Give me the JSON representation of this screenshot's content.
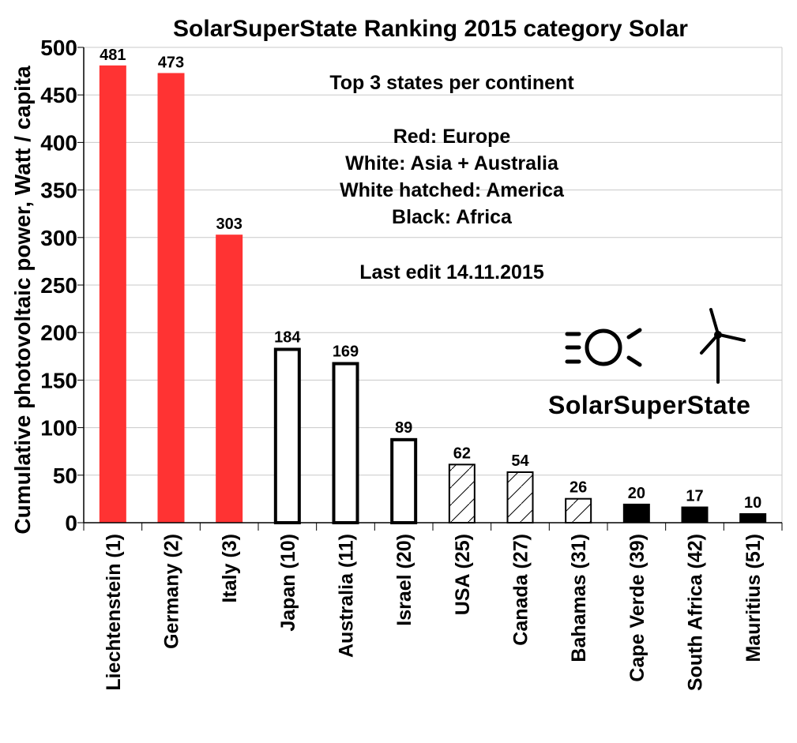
{
  "chart_data": {
    "type": "bar",
    "title": "SolarSuperState Ranking 2015 category Solar",
    "ylabel": "Cumulative photovoltaic power, Watt / capita",
    "xlabel": "",
    "ylim": [
      0,
      500
    ],
    "yticks": [
      0,
      50,
      100,
      150,
      200,
      250,
      300,
      350,
      400,
      450,
      500
    ],
    "grid": true,
    "categories": [
      "Liechtenstein (1)",
      "Germany (2)",
      "Italy (3)",
      "Japan (10)",
      "Australia (11)",
      "Israel (20)",
      "USA (25)",
      "Canada (27)",
      "Bahamas (31)",
      "Cape Verde (39)",
      "South Africa (42)",
      "Mauritius (51)"
    ],
    "values": [
      481,
      473,
      303,
      184,
      169,
      89,
      62,
      54,
      26,
      20,
      17,
      10
    ],
    "data_labels": [
      "481",
      "473",
      "303",
      "184",
      "169",
      "89",
      "62",
      "54",
      "26",
      "20",
      "17",
      "10"
    ],
    "styles": [
      "red",
      "red",
      "red",
      "white",
      "white",
      "white",
      "hatched",
      "hatched",
      "hatched",
      "black",
      "black",
      "black"
    ],
    "colors": {
      "red": "#ff3333",
      "black": "#000000",
      "white": "#ffffff"
    }
  },
  "annotation": {
    "heading": "Top 3 states per continent",
    "legend_lines": [
      "Red:  Europe",
      "White: Asia + Australia",
      "White hatched: America",
      "Black: Africa"
    ],
    "edit_note": "Last edit 14.11.2015"
  },
  "logo": {
    "text": "SolarSuperState",
    "icons": [
      "sun-icon",
      "wind-turbine-icon"
    ]
  }
}
